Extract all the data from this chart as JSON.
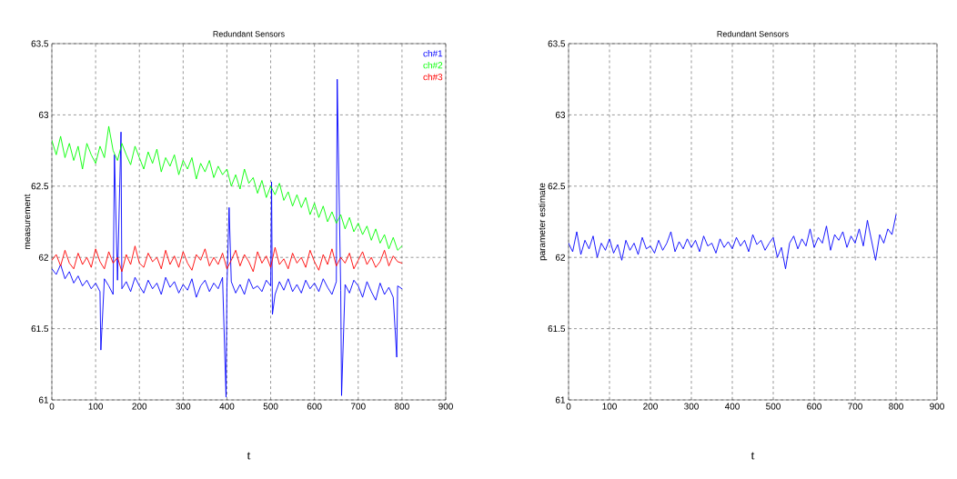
{
  "chart_data": [
    {
      "type": "line",
      "title": "Redundant Sensors",
      "xlabel": "t",
      "ylabel": "measurement",
      "xlim": [
        0,
        900
      ],
      "ylim": [
        61,
        63.5
      ],
      "xticks": [
        0,
        100,
        200,
        300,
        400,
        500,
        600,
        700,
        800,
        900
      ],
      "yticks": [
        61,
        61.5,
        62,
        62.5,
        63,
        63.5
      ],
      "grid": true,
      "legend": "top right",
      "series": [
        {
          "name": "ch#1",
          "color": "#0000ff",
          "x": [
            0,
            10,
            20,
            30,
            40,
            50,
            60,
            70,
            80,
            90,
            100,
            110,
            112,
            120,
            130,
            140,
            143,
            150,
            158,
            160,
            170,
            180,
            190,
            200,
            210,
            220,
            230,
            240,
            250,
            260,
            270,
            280,
            290,
            300,
            310,
            320,
            330,
            340,
            350,
            360,
            370,
            380,
            390,
            398,
            400,
            405,
            410,
            420,
            430,
            440,
            450,
            460,
            470,
            480,
            490,
            500,
            502,
            504,
            510,
            520,
            530,
            540,
            550,
            560,
            570,
            580,
            590,
            600,
            610,
            620,
            630,
            640,
            650,
            652,
            660,
            662,
            670,
            680,
            690,
            700,
            710,
            720,
            730,
            740,
            750,
            760,
            770,
            780,
            788,
            790,
            800
          ],
          "values": [
            61.92,
            61.88,
            61.95,
            61.85,
            61.9,
            61.82,
            61.87,
            61.8,
            61.84,
            61.78,
            61.82,
            61.76,
            61.35,
            61.85,
            61.8,
            61.74,
            62.72,
            61.84,
            62.88,
            61.78,
            61.83,
            61.76,
            61.86,
            61.8,
            61.75,
            61.84,
            61.78,
            61.82,
            61.74,
            61.86,
            61.79,
            61.83,
            61.75,
            61.81,
            61.77,
            61.85,
            61.72,
            61.8,
            61.84,
            61.76,
            61.82,
            61.78,
            61.86,
            61.02,
            61.79,
            62.35,
            61.83,
            61.75,
            61.81,
            61.74,
            61.85,
            61.78,
            61.8,
            61.76,
            61.84,
            61.8,
            62.53,
            61.6,
            61.74,
            61.83,
            61.77,
            61.85,
            61.76,
            61.81,
            61.75,
            61.84,
            61.78,
            61.82,
            61.76,
            61.85,
            61.79,
            61.74,
            61.83,
            63.25,
            61.77,
            61.03,
            61.81,
            61.75,
            61.84,
            61.8,
            61.72,
            61.83,
            61.76,
            61.7,
            61.82,
            61.74,
            61.79,
            61.72,
            61.3,
            61.8,
            61.78
          ]
        },
        {
          "name": "ch#2",
          "color": "#00ff00",
          "x": [
            0,
            10,
            20,
            30,
            40,
            50,
            60,
            70,
            80,
            90,
            100,
            110,
            120,
            130,
            140,
            150,
            160,
            170,
            180,
            190,
            200,
            210,
            220,
            230,
            240,
            250,
            260,
            270,
            280,
            290,
            300,
            310,
            320,
            330,
            340,
            350,
            360,
            370,
            380,
            390,
            400,
            410,
            420,
            430,
            440,
            450,
            460,
            470,
            480,
            490,
            500,
            510,
            520,
            530,
            540,
            550,
            560,
            570,
            580,
            590,
            600,
            610,
            620,
            630,
            640,
            650,
            660,
            670,
            680,
            690,
            700,
            710,
            720,
            730,
            740,
            750,
            760,
            770,
            780,
            790,
            800
          ],
          "values": [
            62.82,
            62.72,
            62.85,
            62.7,
            62.8,
            62.68,
            62.78,
            62.62,
            62.8,
            62.72,
            62.66,
            62.78,
            62.7,
            62.92,
            62.75,
            62.68,
            62.8,
            62.72,
            62.65,
            62.78,
            62.7,
            62.62,
            62.74,
            62.66,
            62.76,
            62.6,
            62.7,
            62.64,
            62.72,
            62.58,
            62.68,
            62.62,
            62.7,
            62.55,
            62.66,
            62.6,
            62.68,
            62.56,
            62.64,
            62.58,
            62.62,
            62.5,
            62.58,
            62.48,
            62.62,
            62.52,
            62.56,
            62.45,
            62.54,
            62.42,
            62.5,
            62.44,
            62.52,
            62.4,
            62.46,
            62.36,
            62.44,
            62.35,
            62.42,
            62.3,
            62.38,
            62.28,
            62.36,
            62.25,
            62.32,
            62.24,
            62.3,
            62.2,
            62.28,
            62.18,
            62.24,
            62.16,
            62.22,
            62.12,
            62.2,
            62.1,
            62.16,
            62.06,
            62.14,
            62.05,
            62.08
          ]
        },
        {
          "name": "ch#3",
          "color": "#ff0000",
          "x": [
            0,
            10,
            20,
            30,
            40,
            50,
            60,
            70,
            80,
            90,
            100,
            110,
            120,
            130,
            140,
            150,
            160,
            170,
            180,
            190,
            200,
            210,
            220,
            230,
            240,
            250,
            260,
            270,
            280,
            290,
            300,
            310,
            320,
            330,
            340,
            350,
            360,
            370,
            380,
            390,
            400,
            410,
            420,
            430,
            440,
            450,
            460,
            470,
            480,
            490,
            500,
            510,
            520,
            530,
            540,
            550,
            560,
            570,
            580,
            590,
            600,
            610,
            620,
            630,
            640,
            650,
            660,
            670,
            680,
            690,
            700,
            710,
            720,
            730,
            740,
            750,
            760,
            770,
            780,
            790,
            800
          ],
          "values": [
            61.98,
            62.02,
            61.94,
            62.05,
            61.96,
            61.92,
            62.03,
            61.95,
            62.0,
            61.93,
            62.06,
            61.97,
            61.92,
            62.04,
            61.96,
            62.0,
            61.9,
            62.02,
            61.95,
            62.08,
            61.96,
            61.93,
            62.03,
            61.97,
            62.0,
            61.92,
            62.05,
            61.95,
            62.01,
            61.93,
            62.04,
            61.96,
            61.91,
            62.02,
            61.98,
            62.06,
            61.94,
            62.0,
            61.95,
            62.03,
            61.92,
            61.98,
            62.05,
            61.94,
            62.02,
            61.97,
            61.9,
            62.04,
            61.96,
            62.01,
            61.93,
            62.07,
            61.95,
            61.99,
            61.92,
            62.03,
            61.96,
            62.0,
            61.93,
            62.05,
            61.97,
            61.91,
            62.02,
            61.95,
            62.06,
            61.94,
            62.0,
            61.96,
            62.03,
            61.92,
            61.98,
            62.04,
            61.95,
            62.0,
            61.93,
            61.97,
            62.05,
            61.94,
            62.01,
            61.97,
            61.96
          ]
        }
      ]
    },
    {
      "type": "line",
      "title": "Redundant Sensors",
      "xlabel": "t",
      "ylabel": "parameter estimate",
      "xlim": [
        0,
        900
      ],
      "ylim": [
        61,
        63.5
      ],
      "xticks": [
        0,
        100,
        200,
        300,
        400,
        500,
        600,
        700,
        800,
        900
      ],
      "yticks": [
        61,
        61.5,
        62,
        62.5,
        63,
        63.5
      ],
      "grid": true,
      "series": [
        {
          "color": "#0000ff",
          "x": [
            0,
            10,
            20,
            30,
            40,
            50,
            60,
            70,
            80,
            90,
            100,
            110,
            120,
            130,
            140,
            150,
            160,
            170,
            180,
            190,
            200,
            210,
            220,
            230,
            240,
            250,
            260,
            270,
            280,
            290,
            300,
            310,
            320,
            330,
            340,
            350,
            360,
            370,
            380,
            390,
            400,
            410,
            420,
            430,
            440,
            450,
            460,
            470,
            480,
            490,
            500,
            510,
            520,
            530,
            540,
            550,
            560,
            570,
            580,
            590,
            600,
            610,
            620,
            630,
            640,
            650,
            660,
            670,
            680,
            690,
            700,
            710,
            720,
            730,
            740,
            750,
            760,
            770,
            780,
            790,
            800
          ],
          "values": [
            62.1,
            62.04,
            62.18,
            62.02,
            62.12,
            62.06,
            62.15,
            62.0,
            62.1,
            62.05,
            62.13,
            62.03,
            62.09,
            61.98,
            62.12,
            62.05,
            62.1,
            62.02,
            62.14,
            62.06,
            62.08,
            62.03,
            62.12,
            62.05,
            62.1,
            62.18,
            62.04,
            62.11,
            62.06,
            62.13,
            62.07,
            62.12,
            62.04,
            62.15,
            62.08,
            62.1,
            62.03,
            62.13,
            62.07,
            62.11,
            62.06,
            62.14,
            62.08,
            62.12,
            62.04,
            62.16,
            62.09,
            62.12,
            62.05,
            62.1,
            62.14,
            62.0,
            62.07,
            61.92,
            62.1,
            62.15,
            62.06,
            62.13,
            62.08,
            62.2,
            62.07,
            62.14,
            62.1,
            62.22,
            62.05,
            62.16,
            62.12,
            62.18,
            62.07,
            62.15,
            62.1,
            62.2,
            62.08,
            62.26,
            62.12,
            61.98,
            62.16,
            62.1,
            62.2,
            62.16,
            62.3
          ]
        }
      ]
    }
  ]
}
